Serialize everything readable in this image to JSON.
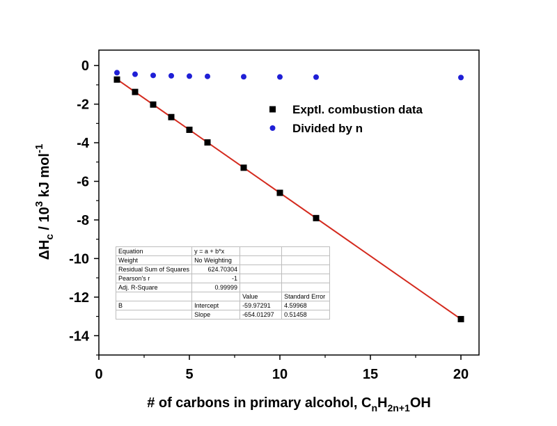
{
  "chart_data": {
    "type": "scatter",
    "xlabel_parts": [
      "# of carbons in primary alcohol, C",
      "n",
      "H",
      "2n+1",
      "OH"
    ],
    "ylabel_parts": [
      "ΔH",
      "c",
      " / 10",
      "3",
      " kJ mol",
      "-1"
    ],
    "xlim": [
      0,
      21
    ],
    "ylim": [
      -15,
      0.8
    ],
    "xticks": [
      0,
      5,
      10,
      15,
      20
    ],
    "xtick_labels": [
      "0",
      "5",
      "10",
      "15",
      "20"
    ],
    "yticks": [
      0,
      -2,
      -4,
      -6,
      -8,
      -10,
      -12,
      -14
    ],
    "ytick_labels": [
      "0",
      "-2",
      "-4",
      "-6",
      "-8",
      "-10",
      "-12",
      "-14"
    ],
    "grid": false,
    "legend_position": "top-right",
    "series": [
      {
        "name": "Exptl. combustion data",
        "marker": "square",
        "color": "#000000",
        "x": [
          1,
          2,
          3,
          4,
          5,
          6,
          8,
          10,
          12,
          20
        ],
        "y": [
          -0.726,
          -1.368,
          -2.021,
          -2.671,
          -3.329,
          -3.984,
          -5.294,
          -6.596,
          -7.905,
          -13.14
        ]
      },
      {
        "name": "Divided by n",
        "marker": "circle",
        "color": "#1f1fd6",
        "x": [
          1,
          2,
          3,
          4,
          5,
          6,
          8,
          10,
          12,
          20
        ],
        "y": [
          -0.37,
          -0.45,
          -0.51,
          -0.53,
          -0.55,
          -0.56,
          -0.58,
          -0.59,
          -0.6,
          -0.62
        ]
      }
    ],
    "fit_line": {
      "color": "#d42a1e",
      "intercept": -0.05997291,
      "slope": -0.65401297,
      "x_range": [
        1,
        20
      ]
    },
    "fit_table": {
      "rows": [
        [
          "Equation",
          "y = a + b*x",
          "",
          ""
        ],
        [
          "Weight",
          "No Weighting",
          "",
          ""
        ],
        [
          "Residual Sum of Squares",
          "624.70304",
          "",
          ""
        ],
        [
          "Pearson's r",
          "-1",
          "",
          ""
        ],
        [
          "Adj. R-Square",
          "0.99999",
          "",
          ""
        ],
        [
          "",
          "",
          "Value",
          "Standard Error"
        ],
        [
          "B",
          "Intercept",
          "-59.97291",
          "4.59968"
        ],
        [
          "",
          "Slope",
          "-654.01297",
          "0.51458"
        ]
      ]
    }
  }
}
